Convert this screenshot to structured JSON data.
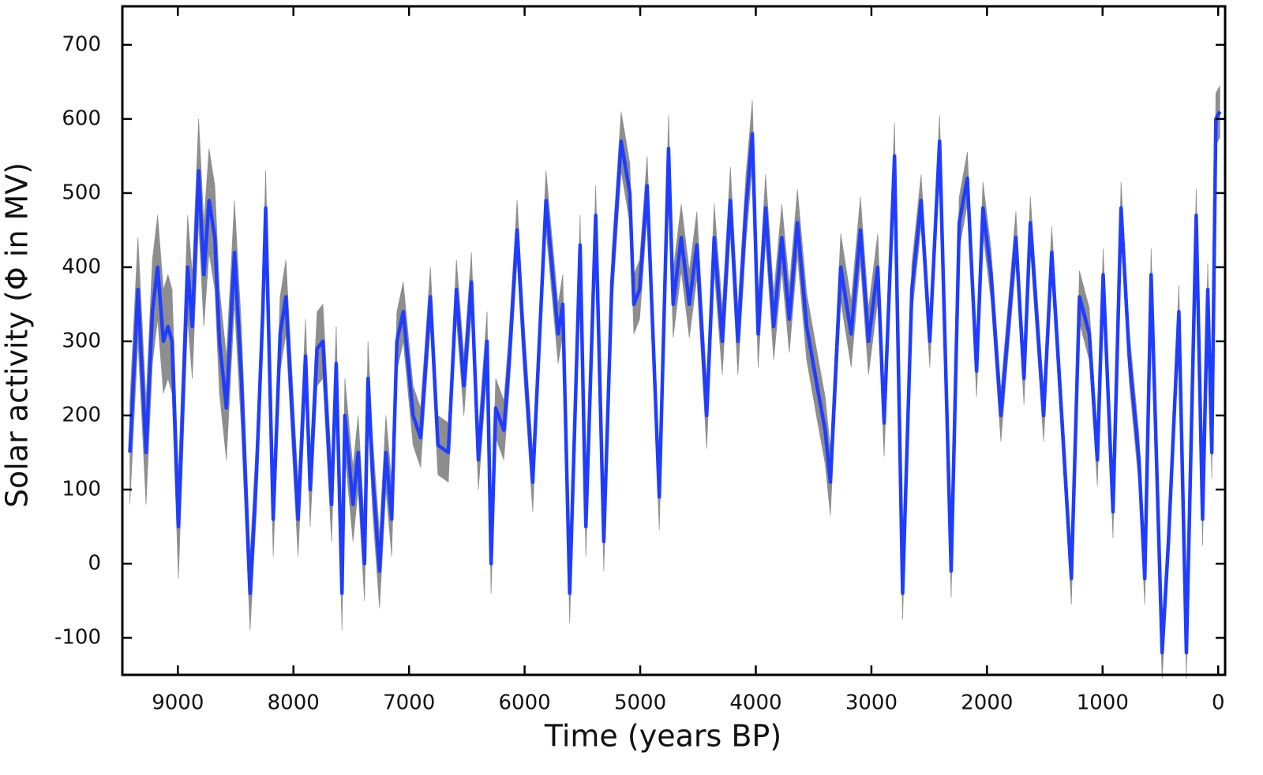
{
  "chart_data": {
    "type": "line",
    "xlabel": "Time (years BP)",
    "ylabel": "Solar activity (Φ in MV)",
    "xlim": [
      9480,
      -60
    ],
    "ylim": [
      -150,
      752
    ],
    "xticks": [
      9000,
      8000,
      7000,
      6000,
      5000,
      4000,
      3000,
      2000,
      1000,
      0
    ],
    "yticks": [
      -100,
      0,
      100,
      200,
      300,
      400,
      500,
      600,
      700
    ],
    "x": [
      9415,
      9345,
      9275,
      9220,
      9175,
      9125,
      9085,
      9050,
      8995,
      8915,
      8875,
      8820,
      8775,
      8730,
      8680,
      8640,
      8580,
      8510,
      8450,
      8375,
      8320,
      8265,
      8240,
      8175,
      8115,
      8065,
      8020,
      7960,
      7895,
      7855,
      7795,
      7745,
      7670,
      7630,
      7580,
      7555,
      7485,
      7440,
      7385,
      7355,
      7315,
      7255,
      7200,
      7150,
      7105,
      7050,
      6965,
      6900,
      6815,
      6750,
      6660,
      6590,
      6525,
      6460,
      6400,
      6325,
      6290,
      6250,
      6180,
      6135,
      6065,
      6010,
      5930,
      5815,
      5710,
      5670,
      5610,
      5520,
      5470,
      5385,
      5315,
      5245,
      5165,
      5090,
      5055,
      5005,
      4940,
      4835,
      4755,
      4715,
      4645,
      4575,
      4510,
      4425,
      4360,
      4290,
      4220,
      4155,
      4085,
      4030,
      3980,
      3915,
      3845,
      3775,
      3710,
      3640,
      3560,
      3470,
      3400,
      3355,
      3265,
      3175,
      3095,
      3025,
      2945,
      2890,
      2800,
      2730,
      2650,
      2570,
      2495,
      2410,
      2310,
      2240,
      2170,
      2090,
      2035,
      1965,
      1880,
      1750,
      1680,
      1625,
      1510,
      1440,
      1350,
      1270,
      1200,
      1115,
      1045,
      995,
      910,
      840,
      770,
      685,
      635,
      580,
      485,
      430,
      340,
      275,
      190,
      135,
      90,
      55,
      20,
      -15
    ],
    "series": [
      {
        "color": "#1f3dff",
        "band_color": "#8e8e8e",
        "values": [
          150,
          370,
          150,
          340,
          400,
          300,
          320,
          300,
          50,
          400,
          320,
          530,
          390,
          490,
          440,
          300,
          210,
          420,
          250,
          -40,
          120,
          340,
          480,
          60,
          310,
          360,
          230,
          60,
          280,
          100,
          290,
          300,
          80,
          270,
          -40,
          200,
          80,
          150,
          0,
          250,
          120,
          -10,
          150,
          60,
          300,
          340,
          200,
          170,
          360,
          160,
          150,
          370,
          240,
          380,
          140,
          300,
          0,
          210,
          180,
          270,
          450,
          300,
          110,
          490,
          310,
          350,
          -40,
          430,
          50,
          470,
          30,
          380,
          570,
          500,
          350,
          370,
          510,
          90,
          560,
          350,
          440,
          350,
          430,
          200,
          440,
          300,
          490,
          300,
          480,
          580,
          310,
          480,
          320,
          440,
          330,
          460,
          320,
          240,
          180,
          110,
          400,
          310,
          450,
          300,
          400,
          190,
          550,
          -40,
          370,
          490,
          300,
          570,
          -10,
          460,
          520,
          260,
          480,
          390,
          200,
          440,
          250,
          460,
          200,
          420,
          190,
          -20,
          360,
          310,
          140,
          390,
          70,
          480,
          280,
          140,
          -20,
          390,
          -120,
          30,
          340,
          -120,
          470,
          60,
          370,
          150,
          600,
          610
        ],
        "errors": [
          70,
          70,
          70,
          70,
          70,
          70,
          70,
          70,
          70,
          70,
          70,
          70,
          70,
          70,
          70,
          70,
          70,
          70,
          70,
          50,
          50,
          50,
          50,
          50,
          50,
          50,
          50,
          50,
          50,
          50,
          50,
          50,
          50,
          50,
          50,
          50,
          50,
          50,
          50,
          50,
          50,
          50,
          50,
          50,
          40,
          40,
          40,
          40,
          40,
          40,
          40,
          40,
          40,
          40,
          40,
          40,
          40,
          40,
          40,
          40,
          40,
          40,
          40,
          40,
          40,
          40,
          40,
          40,
          40,
          40,
          40,
          40,
          40,
          40,
          40,
          40,
          40,
          45,
          45,
          45,
          45,
          45,
          45,
          45,
          45,
          45,
          45,
          45,
          45,
          45,
          45,
          45,
          45,
          45,
          45,
          45,
          45,
          45,
          45,
          45,
          45,
          45,
          45,
          45,
          45,
          45,
          45,
          35,
          35,
          35,
          35,
          35,
          35,
          35,
          35,
          35,
          35,
          35,
          35,
          35,
          35,
          35,
          35,
          35,
          35,
          35,
          35,
          35,
          35,
          35,
          35,
          35,
          35,
          35,
          35,
          35,
          35,
          35,
          35,
          35,
          35,
          35,
          35,
          35,
          35,
          35
        ]
      }
    ]
  }
}
